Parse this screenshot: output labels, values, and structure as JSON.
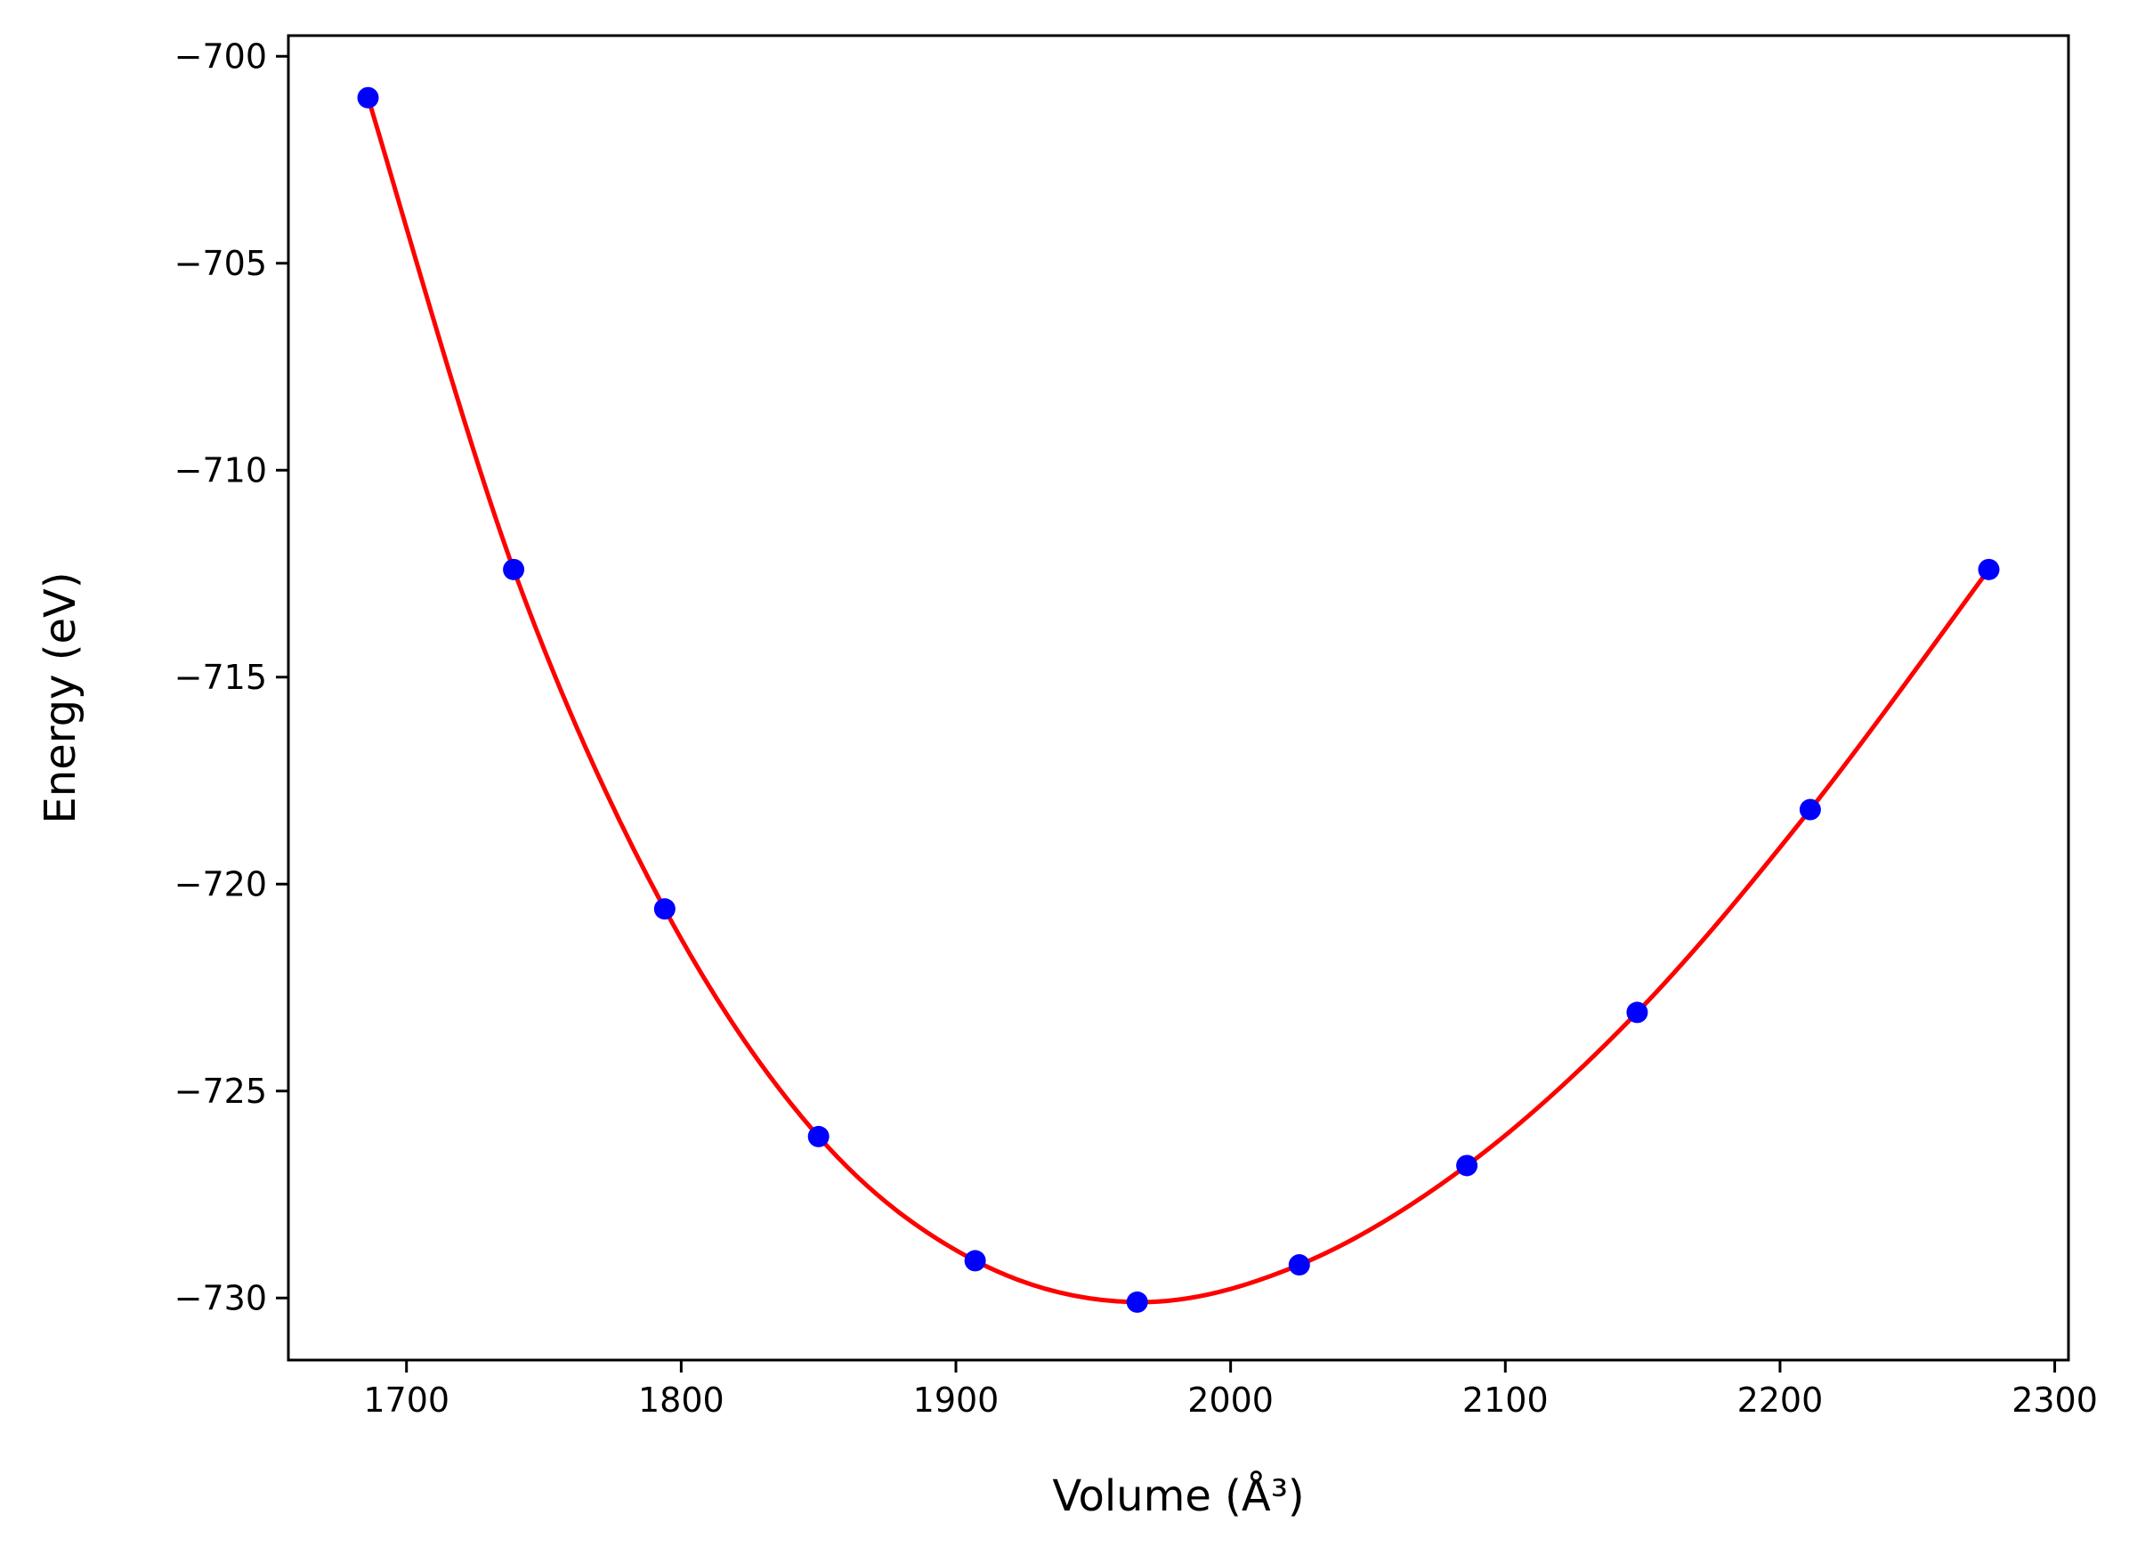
{
  "chart_data": {
    "type": "scatter",
    "title": "",
    "xlabel": "Volume (Å³)",
    "ylabel": "Energy (eV)",
    "xlim": [
      1657,
      2305
    ],
    "ylim": [
      -731.5,
      -699.5
    ],
    "x_ticks": [
      1700,
      1800,
      1900,
      2000,
      2100,
      2200,
      2300
    ],
    "y_ticks": [
      -700,
      -705,
      -710,
      -715,
      -720,
      -725,
      -730
    ],
    "x_tick_labels": [
      "1700",
      "1800",
      "1900",
      "2000",
      "2100",
      "2200",
      "2300"
    ],
    "y_tick_labels": [
      "−700",
      "−705",
      "−710",
      "−715",
      "−720",
      "−725",
      "−730"
    ],
    "grid": false,
    "legend": "none",
    "series": [
      {
        "kind": "markers",
        "color": "#0000ff",
        "x": [
          1686,
          1739,
          1794,
          1850,
          1907,
          1966,
          2025,
          2086,
          2148,
          2211,
          2276
        ],
        "y": [
          -701.0,
          -712.4,
          -720.6,
          -726.1,
          -729.1,
          -730.1,
          -729.2,
          -726.8,
          -723.1,
          -718.2,
          -712.4
        ]
      },
      {
        "kind": "fit-line",
        "color": "#ff0000",
        "x": [
          1686,
          1739,
          1794,
          1850,
          1907,
          1966,
          2025,
          2086,
          2148,
          2211,
          2276
        ],
        "y": [
          -701.0,
          -712.4,
          -720.6,
          -726.1,
          -729.1,
          -730.1,
          -729.2,
          -726.8,
          -723.1,
          -718.2,
          -712.4
        ]
      }
    ]
  }
}
